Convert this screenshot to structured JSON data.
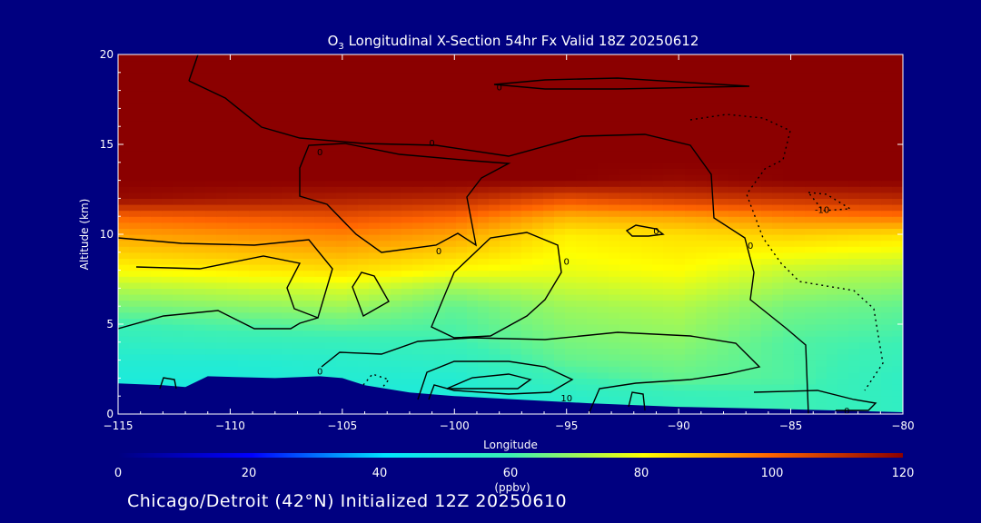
{
  "chart_data": {
    "type": "heatmap",
    "title_species": "O",
    "title_subscript": "3",
    "title_rest": " Longitudinal X-Section 54hr  Fx Valid 18Z 20250612",
    "xlabel": "Longitude",
    "ylabel": "Altitude (km)",
    "xlim": [
      -115,
      -80
    ],
    "ylim": [
      0,
      20
    ],
    "x_ticks": [
      -115,
      -110,
      -105,
      -100,
      -95,
      -90,
      -85,
      -80
    ],
    "y_ticks": [
      0,
      5,
      10,
      15,
      20
    ],
    "grid": false,
    "colorbar": {
      "label": "(ppbv)",
      "range": [
        0,
        120
      ],
      "ticks": [
        0,
        20,
        40,
        60,
        80,
        100,
        120
      ],
      "colormap": "rainbow"
    },
    "ozone_field": {
      "longitudes": [
        -115,
        -110,
        -105,
        -100,
        -95,
        -90,
        -85,
        -80
      ],
      "altitudes": [
        1,
        2,
        3,
        4,
        5,
        6,
        7,
        8,
        9,
        10,
        11,
        12,
        13,
        14,
        16,
        18,
        20
      ],
      "values_ppbv": [
        [
          48,
          48,
          50,
          50,
          54,
          58,
          60,
          56
        ],
        [
          50,
          50,
          52,
          52,
          60,
          64,
          62,
          56
        ],
        [
          52,
          52,
          54,
          56,
          64,
          66,
          62,
          58
        ],
        [
          56,
          58,
          58,
          60,
          66,
          68,
          62,
          60
        ],
        [
          60,
          62,
          64,
          62,
          68,
          70,
          64,
          62
        ],
        [
          66,
          68,
          70,
          64,
          70,
          72,
          66,
          64
        ],
        [
          72,
          74,
          76,
          70,
          74,
          76,
          70,
          68
        ],
        [
          80,
          82,
          84,
          80,
          78,
          80,
          74,
          72
        ],
        [
          86,
          88,
          90,
          86,
          80,
          82,
          80,
          78
        ],
        [
          92,
          94,
          96,
          92,
          82,
          84,
          86,
          84
        ],
        [
          100,
          102,
          104,
          100,
          90,
          92,
          96,
          98
        ],
        [
          118,
          116,
          114,
          112,
          104,
          108,
          110,
          112
        ],
        [
          120,
          120,
          120,
          120,
          120,
          118,
          120,
          120
        ],
        [
          120,
          120,
          120,
          120,
          120,
          120,
          120,
          120
        ],
        [
          120,
          120,
          120,
          120,
          120,
          120,
          120,
          120
        ],
        [
          120,
          120,
          120,
          120,
          120,
          120,
          120,
          120
        ],
        [
          120,
          120,
          120,
          120,
          120,
          120,
          120,
          120
        ]
      ]
    },
    "terrain_km": [
      [
        -115,
        1.7
      ],
      [
        -113,
        1.6
      ],
      [
        -112,
        1.5
      ],
      [
        -111,
        2.1
      ],
      [
        -108,
        2.0
      ],
      [
        -106,
        2.1
      ],
      [
        -105,
        2.0
      ],
      [
        -104,
        1.6
      ],
      [
        -102,
        1.2
      ],
      [
        -100,
        1.0
      ],
      [
        -97,
        0.8
      ],
      [
        -94,
        0.6
      ],
      [
        -90,
        0.4
      ],
      [
        -86,
        0.3
      ],
      [
        -83,
        0.2
      ],
      [
        -80,
        0.1
      ]
    ],
    "contour_labels": [
      {
        "text": "0",
        "lon": -106.0,
        "alt": 14.6
      },
      {
        "text": "0",
        "lon": -101.0,
        "alt": 15.1
      },
      {
        "text": "0",
        "lon": -98.0,
        "alt": 18.2
      },
      {
        "text": "0",
        "lon": -100.7,
        "alt": 9.1
      },
      {
        "text": "0",
        "lon": -95.0,
        "alt": 8.5
      },
      {
        "text": "0",
        "lon": -91.0,
        "alt": 10.2
      },
      {
        "text": "0",
        "lon": -86.8,
        "alt": 9.4
      },
      {
        "text": "-10",
        "lon": -83.6,
        "alt": 11.4
      },
      {
        "text": "10",
        "lon": -95.0,
        "alt": 0.9
      },
      {
        "text": "0",
        "lon": -106.0,
        "alt": 2.4
      },
      {
        "text": "0",
        "lon": -82.5,
        "alt": 0.2
      }
    ]
  },
  "footer": {
    "text": "Chicago/Detroit (42°N) Initialized 12Z 20250610"
  }
}
